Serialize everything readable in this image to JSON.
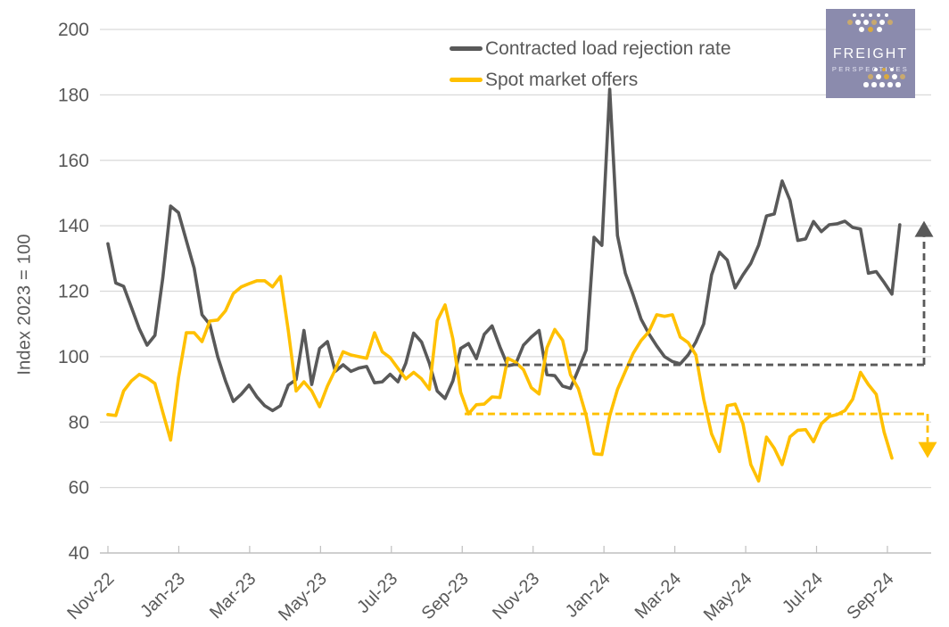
{
  "logo": {
    "line1": "FREIGHT",
    "line2": "PERSPECTIVES",
    "bg_color": "#8B8BAD",
    "dot_colors": {
      "white": "#FFFFFF",
      "tan": "#C9A96E",
      "gold": "#D9A93F"
    }
  },
  "axis_colors": {
    "grid": "#D9D9D9",
    "axis_line": "#BFBFBF",
    "tick_text": "#595959"
  },
  "chart_data": {
    "type": "line",
    "title": "",
    "ylabel": "Index 2023 = 100",
    "ylim": [
      40,
      200
    ],
    "ytick_step": 20,
    "grid": "horizontal",
    "legend_position": "top-center",
    "x_unit": "weekly points, Nov-2022 through Oct-2024",
    "y_tick_labels": [
      "40",
      "60",
      "80",
      "100",
      "120",
      "140",
      "160",
      "180",
      "200"
    ],
    "x_tick_labels": [
      "Nov-22",
      "Jan-23",
      "Mar-23",
      "May-23",
      "Jul-23",
      "Sep-23",
      "Nov-23",
      "Jan-24",
      "Mar-24",
      "May-24",
      "Jul-24",
      "Sep-24"
    ],
    "series": [
      {
        "name": "Contracted load rejection rate",
        "color": "#595959",
        "values": [
          134.5,
          122.5,
          121.5,
          115,
          108.5,
          103.5,
          106.5,
          124,
          146,
          144,
          135.5,
          127,
          112.8,
          109.8,
          100,
          92.6,
          86.3,
          88.5,
          91.3,
          87.7,
          85,
          83.5,
          85,
          91.3,
          93,
          108,
          91.5,
          102.5,
          104.6,
          95.5,
          97.5,
          95.5,
          96.5,
          97,
          92,
          92.3,
          94.6,
          92.3,
          98,
          107.2,
          104.5,
          98,
          89.5,
          87.2,
          92.6,
          102.5,
          104,
          99.4,
          106.8,
          109.4,
          103,
          97.2,
          97.7,
          103.5,
          106,
          108,
          94.5,
          94.2,
          91,
          90.3,
          96,
          102,
          136.5,
          134,
          181.7,
          137,
          125.5,
          118.8,
          111.5,
          107,
          103.3,
          100,
          98.5,
          97.8,
          100.5,
          104.5,
          110,
          125,
          131.9,
          129.5,
          121,
          125,
          128.5,
          134.1,
          143,
          143.6,
          153.7,
          147.8,
          135.5,
          136,
          141.3,
          138.2,
          140.3,
          140.6,
          141.4,
          139.5,
          139,
          125.5,
          126,
          122.7,
          119.1,
          140.3
        ]
      },
      {
        "name": "Spot market offers",
        "color": "#FFC000",
        "values": [
          82.3,
          82,
          89.5,
          92.6,
          94.6,
          93.5,
          91.8,
          83,
          74.5,
          93.5,
          107.3,
          107.3,
          104.6,
          110.9,
          111.2,
          114,
          119.3,
          121.3,
          122.3,
          123.2,
          123.2,
          121.3,
          124.5,
          108,
          89.5,
          92.3,
          89.5,
          84.7,
          91,
          96,
          101.5,
          100.5,
          100,
          99.5,
          107.3,
          101.5,
          99.7,
          96.4,
          93.2,
          95.2,
          93.2,
          90,
          111,
          115.8,
          105.4,
          89.1,
          82.5,
          85.3,
          85.5,
          87.7,
          87.5,
          99.5,
          98.3,
          96,
          90.5,
          88.6,
          102.7,
          108.3,
          105,
          94.5,
          90.2,
          82,
          70.3,
          70.1,
          81.9,
          90,
          95.5,
          101,
          104.9,
          107.6,
          112.8,
          112.3,
          112.8,
          106,
          104.3,
          100.5,
          87,
          76.4,
          71,
          85,
          85.5,
          79.5,
          67,
          62,
          75.4,
          72,
          67,
          75.5,
          77.5,
          77.7,
          74,
          79.5,
          81.7,
          82.3,
          83.5,
          87,
          95.2,
          91.5,
          88.5,
          77,
          69
        ]
      }
    ],
    "annotations": {
      "reference_lines": [
        {
          "series": "Contracted load rejection rate",
          "value": 97.5,
          "start_week": 45.5,
          "style": "dashed",
          "color": "#595959"
        },
        {
          "series": "Spot market offers",
          "value": 82.5,
          "start_week": 45.5,
          "style": "dashed",
          "color": "#FFC000"
        }
      ],
      "change_arrows": [
        {
          "series": "Contracted load rejection rate",
          "direction": "up",
          "from_value": 97.5,
          "to_value": 141.5,
          "color": "#595959"
        },
        {
          "series": "Spot market offers",
          "direction": "down",
          "from_value": 82.5,
          "to_value": 69,
          "color": "#FFC000"
        }
      ]
    }
  }
}
